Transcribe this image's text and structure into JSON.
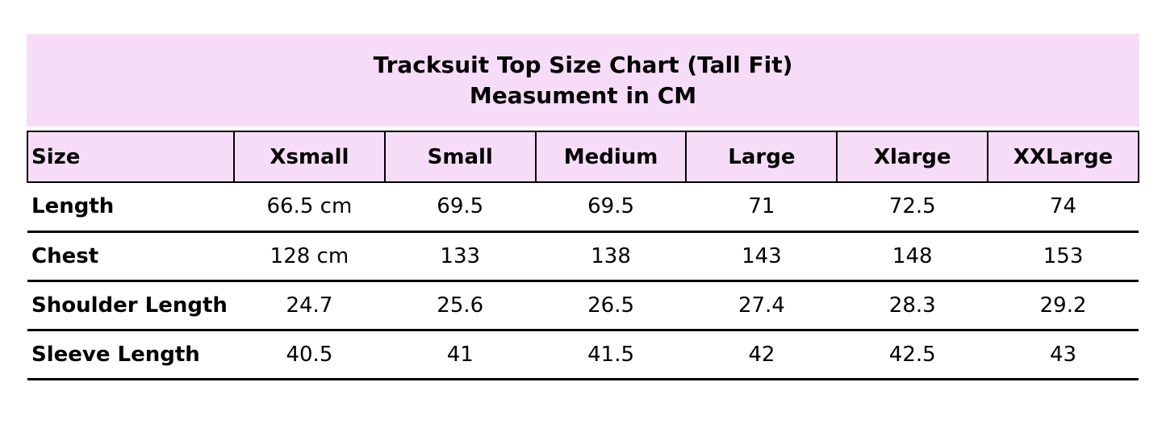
{
  "colors": {
    "banner_bg": "#f7dcf8",
    "row_bg": "#ffffff",
    "border": "#000000",
    "text": "#000000"
  },
  "chart_data": {
    "type": "table",
    "title": "Tracksuit Top Size Chart (Tall Fit)",
    "subtitle": "Measument in CM",
    "columns": [
      "Size",
      "Xsmall",
      "Small",
      "Medium",
      "Large",
      "Xlarge",
      "XXLarge"
    ],
    "rows": [
      {
        "label": "Length",
        "values": [
          "66.5 cm",
          "69.5",
          "69.5",
          "71",
          "72.5",
          "74"
        ]
      },
      {
        "label": "Chest",
        "values": [
          "128 cm",
          "133",
          "138",
          "143",
          "148",
          "153"
        ]
      },
      {
        "label": "Shoulder Length",
        "values": [
          "24.7",
          "25.6",
          "26.5",
          "27.4",
          "28.3",
          "29.2"
        ]
      },
      {
        "label": "Sleeve Length",
        "values": [
          "40.5",
          "41",
          "41.5",
          "42",
          "42.5",
          "43"
        ]
      }
    ]
  }
}
